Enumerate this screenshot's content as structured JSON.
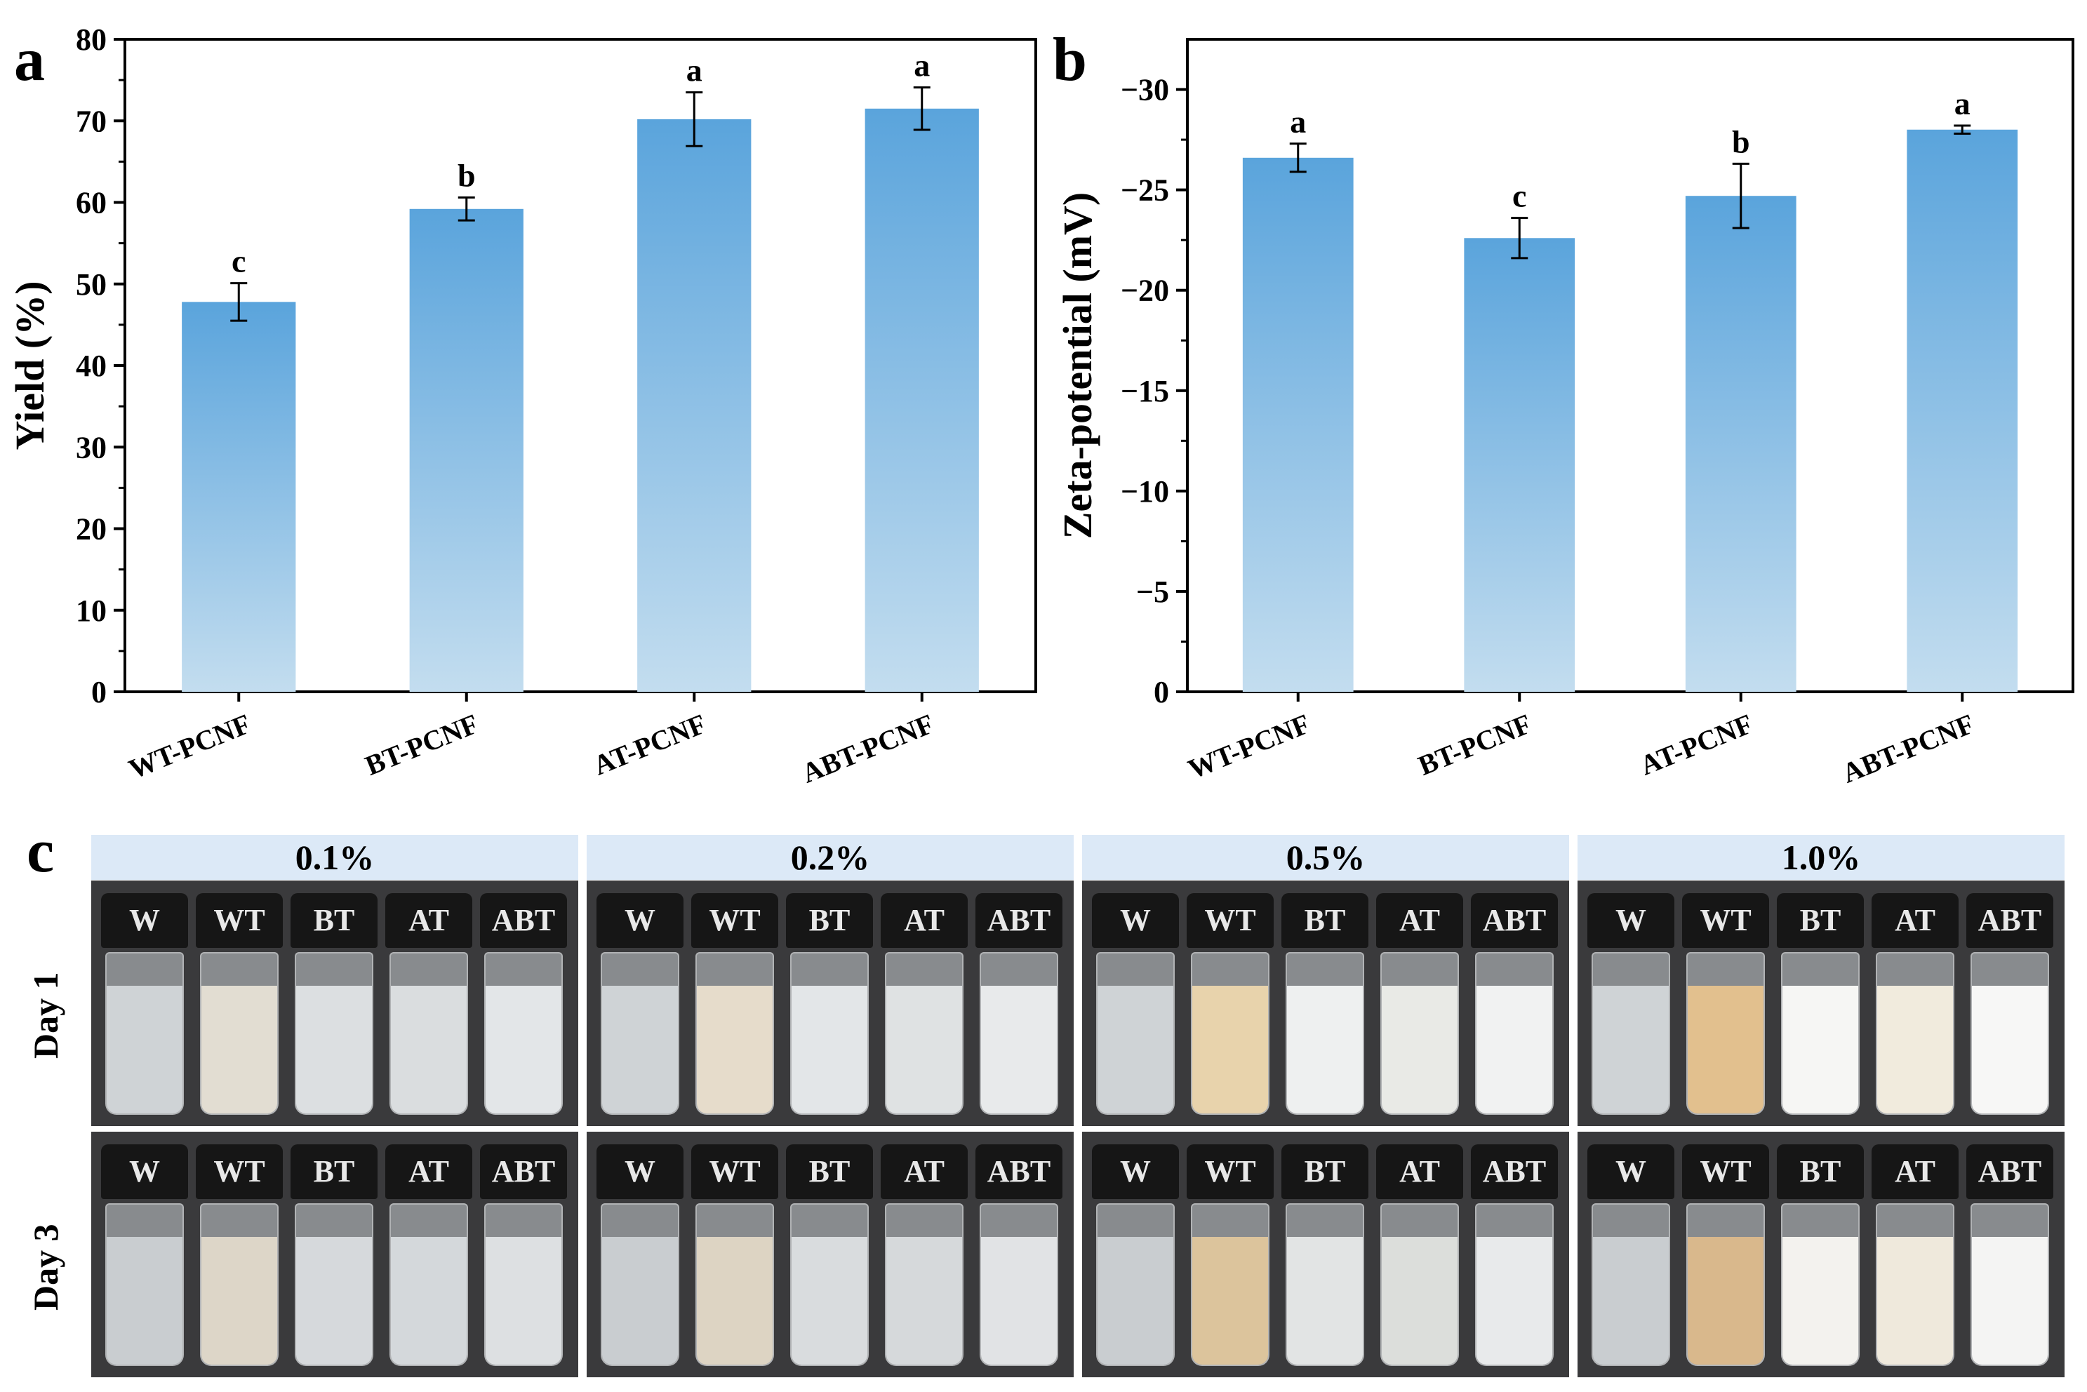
{
  "panels": {
    "a": "a",
    "b": "b",
    "c": "c"
  },
  "chart_data": [
    {
      "panel": "a",
      "type": "bar",
      "categories": [
        "WT-PCNF",
        "BT-PCNF",
        "AT-PCNF",
        "ABT-PCNF"
      ],
      "values": [
        47.8,
        59.2,
        70.2,
        71.5
      ],
      "errors": [
        2.3,
        1.4,
        3.3,
        2.6
      ],
      "significance": [
        "c",
        "b",
        "a",
        "a"
      ],
      "ylabel": "Yield (%)",
      "ylim": [
        0,
        80
      ],
      "yticks": [
        "0",
        "10",
        "20",
        "30",
        "40",
        "50",
        "60",
        "70",
        "80"
      ],
      "bar_color_top": "#5aa4dc",
      "bar_color_bottom": "#c0dcef"
    },
    {
      "panel": "b",
      "type": "bar",
      "categories": [
        "WT-PCNF",
        "BT-PCNF",
        "AT-PCNF",
        "ABT-PCNF"
      ],
      "values": [
        -26.6,
        -22.6,
        -24.7,
        -28.0
      ],
      "errors": [
        0.7,
        1.0,
        1.6,
        0.2
      ],
      "significance": [
        "a",
        "c",
        "b",
        "a"
      ],
      "ylabel": "Zeta-potential (mV)",
      "ylim": [
        0,
        -32.5
      ],
      "yticks": [
        "0",
        "−5",
        "−10",
        "−15",
        "−20",
        "−25",
        "−30"
      ],
      "bar_color_top": "#5aa4dc",
      "bar_color_bottom": "#c0dcef"
    }
  ],
  "photos": {
    "concentrations": [
      "0.1%",
      "0.2%",
      "0.5%",
      "1.0%"
    ],
    "days": [
      "Day 1",
      "Day 3"
    ],
    "vial_labels": [
      "W",
      "WT",
      "BT",
      "AT",
      "ABT"
    ],
    "liquid_colors": [
      [
        [
          "#cfd3d6",
          "#e2ddd2",
          "#dcdfe1",
          "#dadddf",
          "#e3e6e8"
        ],
        [
          "#c9cdd0",
          "#ddd6c8",
          "#d6d9dc",
          "#d4d8db",
          "#dde0e2"
        ]
      ],
      [
        [
          "#cfd3d6",
          "#e6dccb",
          "#e3e6e8",
          "#dfe2e3",
          "#e8eaeb"
        ],
        [
          "#c9cdd0",
          "#ddd4c3",
          "#d9dcde",
          "#d6d9db",
          "#e1e3e5"
        ]
      ],
      [
        [
          "#cfd3d6",
          "#e8d3ac",
          "#eef0f0",
          "#e9eae6",
          "#f1f2f2"
        ],
        [
          "#c9cdd0",
          "#dcc49c",
          "#e2e4e4",
          "#dcdedb",
          "#e8eaeb"
        ]
      ],
      [
        [
          "#cfd3d6",
          "#e2c08e",
          "#f6f6f4",
          "#f1ebdd",
          "#f7f7f6"
        ],
        [
          "#c9cdd0",
          "#d9b88c",
          "#f3f2ee",
          "#efe9dc",
          "#f4f4f3"
        ]
      ]
    ]
  }
}
